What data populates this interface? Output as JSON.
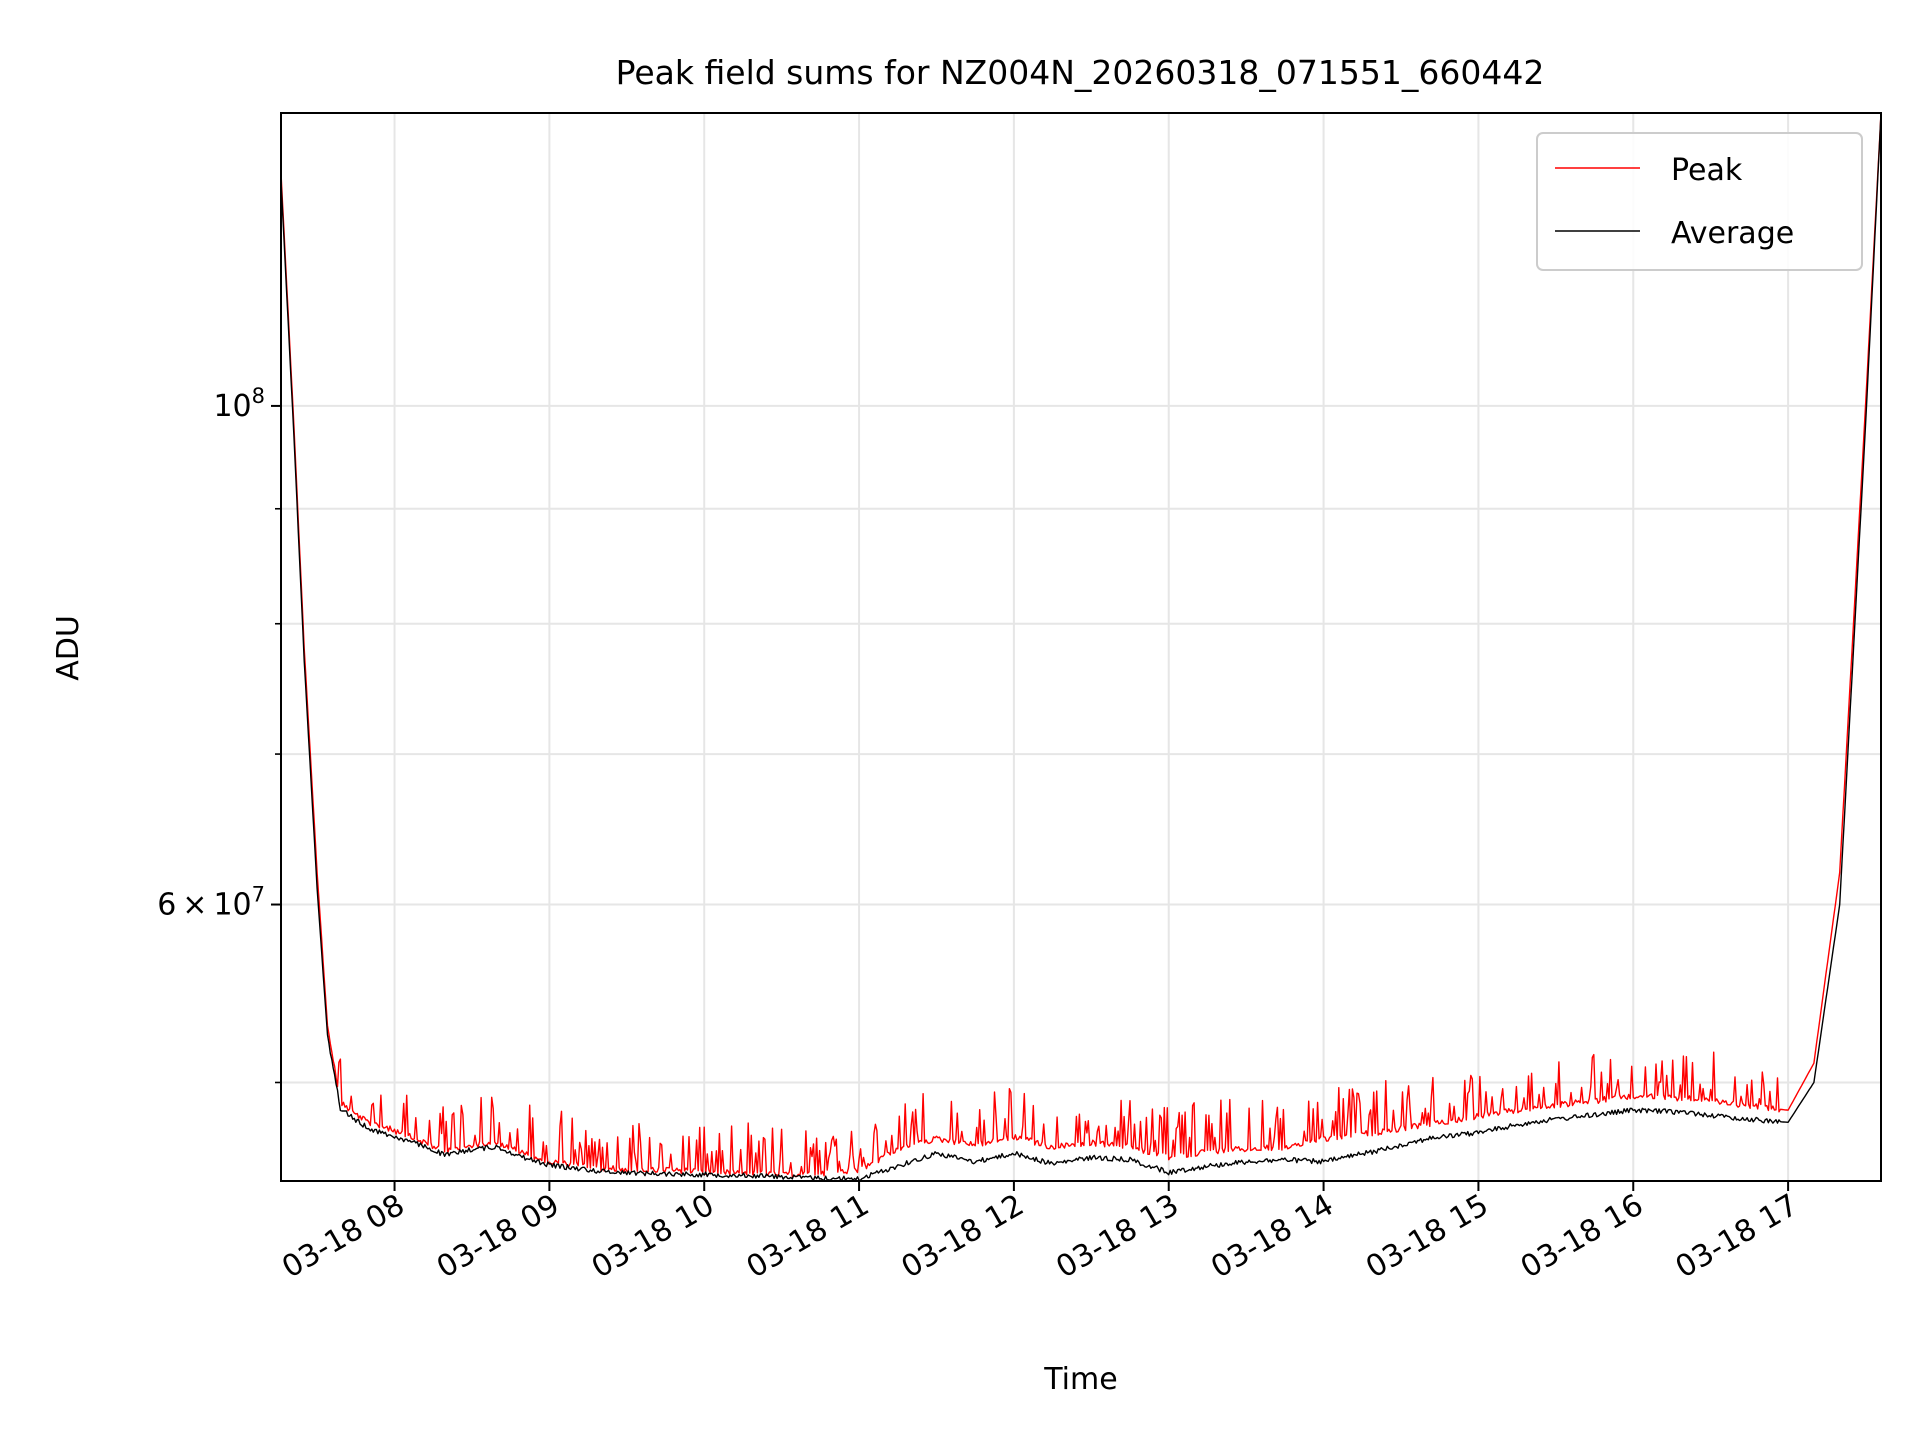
{
  "chart_data": {
    "type": "line",
    "title": "Peak field sums for NZ004N_20260318_071551_660442",
    "xlabel": "Time",
    "ylabel": "ADU",
    "yscale": "log",
    "grid": true,
    "legend_position": "top-right",
    "x_tick_labels": [
      "03-18 08",
      "03-18 09",
      "03-18 10",
      "03-18 11",
      "03-18 12",
      "03-18 13",
      "03-18 14",
      "03-18 15",
      "03-18 16",
      "03-18 17"
    ],
    "x_ticks": [
      "2026-03-18 08:00",
      "2026-03-18 09:00",
      "2026-03-18 10:00",
      "2026-03-18 11:00",
      "2026-03-18 12:00",
      "2026-03-18 13:00",
      "2026-03-18 14:00",
      "2026-03-18 15:00",
      "2026-03-18 16:00",
      "2026-03-18 17:00"
    ],
    "xlim": [
      "2026-03-18 07:16",
      "2026-03-18 17:36"
    ],
    "ylim": [
      45200000,
      135000000
    ],
    "y_major_ticks": [
      {
        "value": 100000000,
        "base": "10",
        "exponent": "8"
      },
      {
        "value": 60000000,
        "mantissa": "6",
        "base": "10",
        "exponent": "7"
      }
    ],
    "y_minor_ticks": [
      50000000,
      70000000,
      80000000,
      90000000
    ],
    "series": [
      {
        "name": "Peak",
        "color": "#ff0000",
        "x": [
          "2026-03-18 07:16",
          "2026-03-18 07:21",
          "2026-03-18 07:25",
          "2026-03-18 07:30",
          "2026-03-18 07:34",
          "2026-03-18 07:39",
          "2026-03-18 07:45",
          "2026-03-18 07:50",
          "2026-03-18 08:00",
          "2026-03-18 08:10",
          "2026-03-18 08:20",
          "2026-03-18 08:30",
          "2026-03-18 08:40",
          "2026-03-18 08:50",
          "2026-03-18 09:00",
          "2026-03-18 09:20",
          "2026-03-18 09:40",
          "2026-03-18 10:00",
          "2026-03-18 10:20",
          "2026-03-18 10:40",
          "2026-03-18 11:00",
          "2026-03-18 11:15",
          "2026-03-18 11:30",
          "2026-03-18 11:45",
          "2026-03-18 12:00",
          "2026-03-18 12:15",
          "2026-03-18 12:30",
          "2026-03-18 12:45",
          "2026-03-18 13:00",
          "2026-03-18 13:15",
          "2026-03-18 13:30",
          "2026-03-18 13:45",
          "2026-03-18 14:00",
          "2026-03-18 14:20",
          "2026-03-18 14:40",
          "2026-03-18 15:00",
          "2026-03-18 15:20",
          "2026-03-18 15:40",
          "2026-03-18 16:00",
          "2026-03-18 16:20",
          "2026-03-18 16:40",
          "2026-03-18 17:00",
          "2026-03-18 17:10",
          "2026-03-18 17:20",
          "2026-03-18 17:30",
          "2026-03-18 17:36"
        ],
        "y": [
          127000000,
          98000000,
          78000000,
          62000000,
          53000000,
          49000000,
          48400000,
          48000000,
          47600000,
          47100000,
          46600000,
          46900000,
          47000000,
          46500000,
          46100000,
          45800000,
          45700000,
          45650000,
          45600000,
          45500000,
          45700000,
          46700000,
          47200000,
          46900000,
          47300000,
          46800000,
          47000000,
          46800000,
          46300000,
          46600000,
          46700000,
          46800000,
          47200000,
          47500000,
          47900000,
          48300000,
          48700000,
          49000000,
          49300000,
          49200000,
          48900000,
          48600000,
          51000000,
          62000000,
          100000000,
          135000000
        ]
      },
      {
        "name": "Average",
        "color": "#000000",
        "x": [
          "2026-03-18 07:16",
          "2026-03-18 07:21",
          "2026-03-18 07:25",
          "2026-03-18 07:30",
          "2026-03-18 07:34",
          "2026-03-18 07:39",
          "2026-03-18 07:45",
          "2026-03-18 07:50",
          "2026-03-18 08:00",
          "2026-03-18 08:10",
          "2026-03-18 08:20",
          "2026-03-18 08:30",
          "2026-03-18 08:40",
          "2026-03-18 08:50",
          "2026-03-18 09:00",
          "2026-03-18 09:20",
          "2026-03-18 09:40",
          "2026-03-18 10:00",
          "2026-03-18 10:20",
          "2026-03-18 10:40",
          "2026-03-18 11:00",
          "2026-03-18 11:15",
          "2026-03-18 11:30",
          "2026-03-18 11:45",
          "2026-03-18 12:00",
          "2026-03-18 12:15",
          "2026-03-18 12:30",
          "2026-03-18 12:45",
          "2026-03-18 13:00",
          "2026-03-18 13:15",
          "2026-03-18 13:30",
          "2026-03-18 13:45",
          "2026-03-18 14:00",
          "2026-03-18 14:20",
          "2026-03-18 14:40",
          "2026-03-18 15:00",
          "2026-03-18 15:20",
          "2026-03-18 15:40",
          "2026-03-18 16:00",
          "2026-03-18 16:20",
          "2026-03-18 16:40",
          "2026-03-18 17:00",
          "2026-03-18 17:10",
          "2026-03-18 17:20",
          "2026-03-18 17:30",
          "2026-03-18 17:36"
        ],
        "y": [
          126000000,
          97000000,
          77000000,
          61000000,
          52500000,
          48700000,
          48100000,
          47700000,
          47300000,
          46900000,
          46400000,
          46700000,
          46800000,
          46300000,
          45950000,
          45650000,
          45550000,
          45500000,
          45450000,
          45350000,
          45300000,
          45900000,
          46500000,
          46100000,
          46500000,
          46000000,
          46300000,
          46200000,
          45600000,
          45900000,
          46100000,
          46200000,
          46100000,
          46600000,
          47200000,
          47500000,
          48000000,
          48300000,
          48600000,
          48500000,
          48200000,
          48000000,
          50000000,
          60000000,
          98000000,
          135000000
        ]
      }
    ]
  }
}
